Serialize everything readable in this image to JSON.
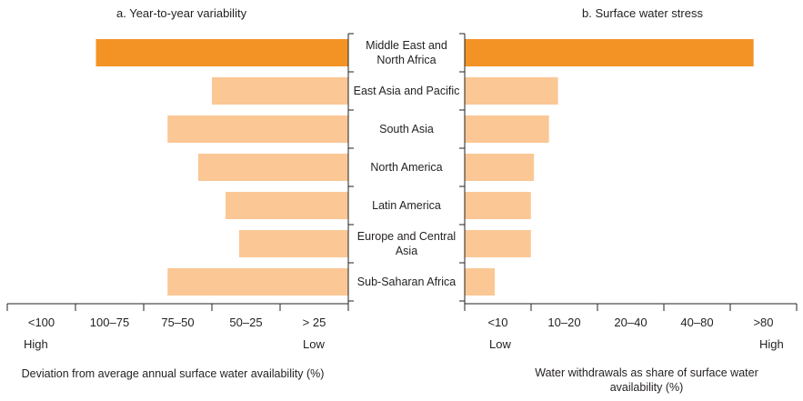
{
  "chart_data": [
    {
      "type": "bar",
      "orientation": "horizontal",
      "title": "a. Year-to-year variability",
      "xlabel": "Deviation from average annual surface water availability (%)",
      "x_categories": [
        "<100",
        "100–75",
        "75–50",
        "50–25",
        "> 25"
      ],
      "x_end_labels": {
        "left": "High",
        "right": "Low"
      },
      "x_direction": "reversed",
      "categories": [
        "Middle East and North Africa",
        "East Asia and Pacific",
        "South Asia",
        "North America",
        "Latin America",
        "Europe and Central Asia",
        "Sub-Saharan Africa"
      ],
      "values": [
        74,
        40,
        53,
        44,
        36,
        32,
        53
      ],
      "value_unit": "% deviation (estimated)",
      "highlight_category": "Middle East and North Africa",
      "colors": {
        "highlight": "#f39325",
        "default": "#fbc795"
      }
    },
    {
      "type": "bar",
      "orientation": "horizontal",
      "title": "b. Surface water stress",
      "xlabel": "Water withdrawals as share of surface water availability (%)",
      "x_categories": [
        "<10",
        "10–20",
        "20–40",
        "40–80",
        ">80"
      ],
      "x_end_labels": {
        "left": "Low",
        "right": "High"
      },
      "x_direction": "normal",
      "categories": [
        "Middle East and North Africa",
        "East Asia and Pacific",
        "South Asia",
        "North America",
        "Latin America",
        "Europe and Central Asia",
        "Sub-Saharan Africa"
      ],
      "values": [
        96,
        31,
        28,
        23,
        22,
        22,
        10
      ],
      "value_unit": "% (estimated)",
      "highlight_category": "Middle East and North Africa",
      "colors": {
        "highlight": "#f39325",
        "default": "#fbc795"
      }
    }
  ],
  "category_labels": [
    "Middle East and\nNorth Africa",
    "East Asia and Pacific",
    "South Asia",
    "North America",
    "Latin America",
    "Europe and Central\nAsia",
    "Sub-Saharan Africa"
  ]
}
